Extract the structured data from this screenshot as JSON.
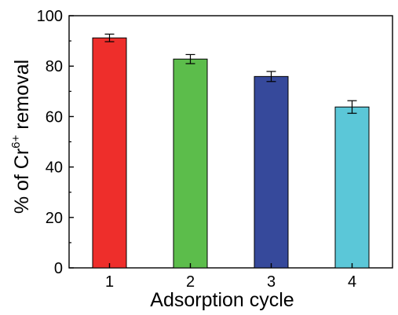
{
  "chart_data": {
    "type": "bar",
    "categories": [
      "1",
      "2",
      "3",
      "4"
    ],
    "values": [
      91.2,
      82.8,
      75.9,
      63.8
    ],
    "errors": [
      1.5,
      1.8,
      2.0,
      2.5
    ],
    "colors": [
      "#ee2e2b",
      "#5cbd4b",
      "#36499b",
      "#5bc7d8"
    ],
    "xlabel": "Adsorption cycle",
    "ylabel": {
      "prefix": "% of Cr",
      "superscript": "6+",
      "suffix": " removal"
    },
    "ylim": [
      0,
      100
    ],
    "yticks": [
      0,
      20,
      40,
      60,
      80,
      100
    ],
    "grid": false,
    "legend": "none"
  }
}
